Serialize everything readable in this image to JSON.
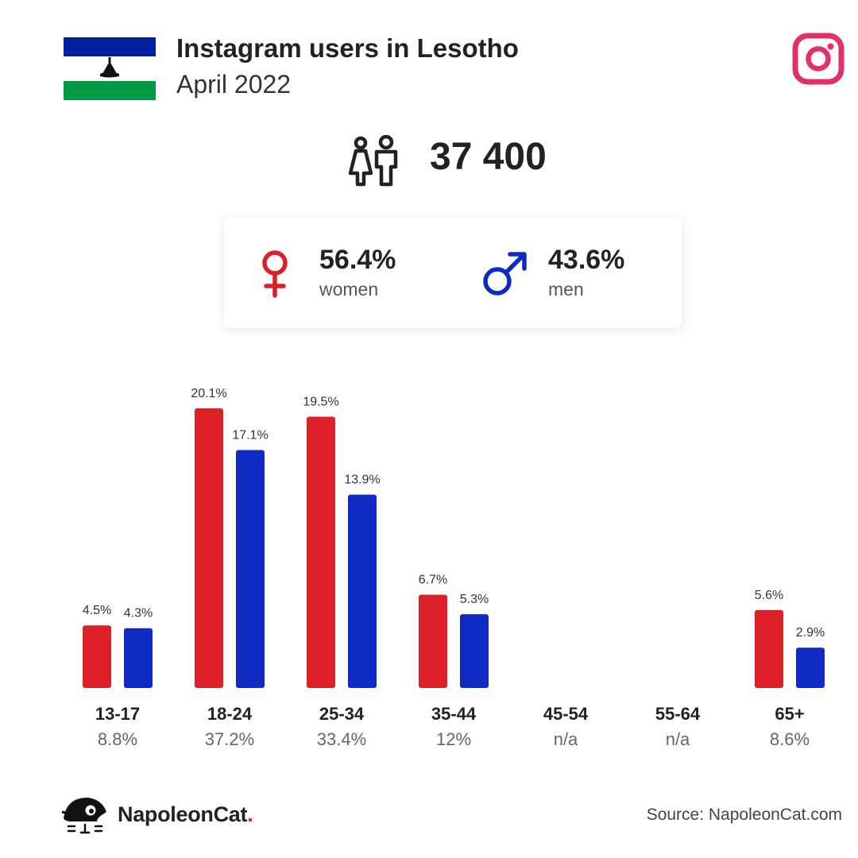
{
  "header": {
    "title": "Instagram users in Lesotho",
    "subtitle": "April 2022"
  },
  "summary": {
    "total": "37 400",
    "women_pct": "56.4%",
    "women_label": "women",
    "men_pct": "43.6%",
    "men_label": "men"
  },
  "colors": {
    "women": "#dd1f27",
    "men": "#0f2bc4",
    "instagram": "#e1306c"
  },
  "icons": {
    "flag": "lesotho-flag-icon",
    "instagram": "instagram-icon",
    "people": "people-icon",
    "female": "female-symbol-icon",
    "male": "male-symbol-icon",
    "brand": "napoleoncat-logo-icon"
  },
  "chart_data": {
    "type": "bar",
    "categories": [
      "13-17",
      "18-24",
      "25-34",
      "35-44",
      "45-54",
      "55-64",
      "65+"
    ],
    "category_totals": [
      "8.8%",
      "37.2%",
      "33.4%",
      "12%",
      "n/a",
      "n/a",
      "8.6%"
    ],
    "series": [
      {
        "values": [
          4.5,
          20.1,
          19.5,
          6.7,
          null,
          null,
          5.6
        ],
        "labels": [
          "4.5%",
          "20.1%",
          "19.5%",
          "6.7%",
          "",
          "",
          "5.6%"
        ],
        "color": "#dd1f27"
      },
      {
        "values": [
          4.3,
          17.1,
          13.9,
          5.3,
          null,
          null,
          2.9
        ],
        "labels": [
          "4.3%",
          "17.1%",
          "13.9%",
          "5.3%",
          "",
          "",
          "2.9%"
        ],
        "color": "#0f2bc4"
      }
    ],
    "ylim": [
      0,
      20.1
    ],
    "grid": false,
    "legend": "none"
  },
  "footer": {
    "brand_name": "NapoleonCat",
    "brand_dot": ".",
    "source": "Source: NapoleonCat.com"
  }
}
